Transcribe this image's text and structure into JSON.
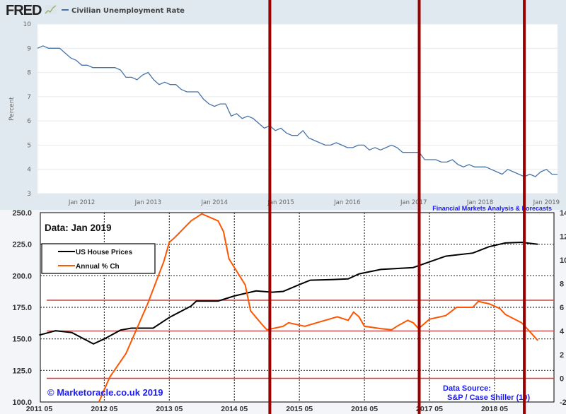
{
  "chart_data": [
    {
      "type": "line",
      "brand": "FRED",
      "legend": [
        "Civilian Unemployment Rate"
      ],
      "ylabel": "Percent",
      "ylim": [
        3,
        10
      ],
      "yticks": [
        "10",
        "9",
        "8",
        "7",
        "6",
        "5",
        "4",
        "3"
      ],
      "xticks": [
        {
          "date": "2012-01",
          "label": "Jan 2012"
        },
        {
          "date": "2013-01",
          "label": "Jan 2013"
        },
        {
          "date": "2014-01",
          "label": "Jan 2014"
        },
        {
          "date": "2015-01",
          "label": "Jan 2015"
        },
        {
          "date": "2016-01",
          "label": "Jan 2016"
        },
        {
          "date": "2017-01",
          "label": "Jan 2017"
        },
        {
          "date": "2018-01",
          "label": "Jan 2018"
        },
        {
          "date": "2019-01",
          "label": "Jan 2019"
        }
      ],
      "xlim": [
        "2011-05",
        "2019-03"
      ],
      "grid": true,
      "line_color": "#4572a7",
      "series": [
        {
          "name": "Civilian Unemployment Rate",
          "start": "2011-05",
          "frequency": "monthly",
          "values": [
            9.0,
            9.1,
            9.0,
            9.0,
            9.0,
            8.8,
            8.6,
            8.5,
            8.3,
            8.3,
            8.2,
            8.2,
            8.2,
            8.2,
            8.2,
            8.1,
            7.8,
            7.8,
            7.7,
            7.9,
            8.0,
            7.7,
            7.5,
            7.6,
            7.5,
            7.5,
            7.3,
            7.2,
            7.2,
            7.2,
            6.9,
            6.7,
            6.6,
            6.7,
            6.7,
            6.2,
            6.3,
            6.1,
            6.2,
            6.1,
            5.9,
            5.7,
            5.8,
            5.6,
            5.7,
            5.5,
            5.4,
            5.4,
            5.6,
            5.3,
            5.2,
            5.1,
            5.0,
            5.0,
            5.1,
            5.0,
            4.9,
            4.9,
            5.0,
            5.0,
            4.8,
            4.9,
            4.8,
            4.9,
            5.0,
            4.9,
            4.7,
            4.7,
            4.7,
            4.7,
            4.4,
            4.4,
            4.4,
            4.3,
            4.3,
            4.4,
            4.2,
            4.1,
            4.2,
            4.1,
            4.1,
            4.1,
            4.0,
            3.9,
            3.8,
            4.0,
            3.9,
            3.8,
            3.7,
            3.8,
            3.7,
            3.9,
            4.0,
            3.8,
            3.8
          ]
        }
      ]
    },
    {
      "type": "line",
      "annotation_title": "Data: Jan 2019",
      "header_text": "Financial Markets Analysis & Forecasts",
      "copyright": "© Marketoracle.co.uk 2019",
      "source_title": "Data Source:",
      "source": "S&P / Case Shiller (10)",
      "ylim_left": [
        100,
        250
      ],
      "ylim_right": [
        -2,
        14
      ],
      "yticks_left": [
        "250.0",
        "225.0",
        "200.0",
        "175.0",
        "150.0",
        "125.0",
        "100.0"
      ],
      "yticks_right": [
        "14",
        "12",
        "10",
        "8",
        "6",
        "4",
        "2",
        "0",
        "-2"
      ],
      "xlim": [
        "2011-05",
        "2019-03"
      ],
      "xticks": [
        {
          "date": "2011-05",
          "label": "2011 05"
        },
        {
          "date": "2012-05",
          "label": "2012 05"
        },
        {
          "date": "2013-05",
          "label": "2013 05"
        },
        {
          "date": "2014-05",
          "label": "2014 05"
        },
        {
          "date": "2015-05",
          "label": "2015 05"
        },
        {
          "date": "2016-05",
          "label": "2016 05"
        },
        {
          "date": "2017-05",
          "label": "2017 05"
        },
        {
          "date": "2018-05",
          "label": "2018 05"
        }
      ],
      "grid": "dotted",
      "legend_placement": "top-left",
      "series": [
        {
          "name": "US House Prices",
          "axis": "left",
          "color": "#000000",
          "points": [
            [
              "2011-05",
              153
            ],
            [
              "2011-08",
              156.5
            ],
            [
              "2011-11",
              155
            ],
            [
              "2012-03",
              146
            ],
            [
              "2012-05",
              150
            ],
            [
              "2012-08",
              157
            ],
            [
              "2012-10",
              158.5
            ],
            [
              "2013-02",
              158.5
            ],
            [
              "2013-05",
              167
            ],
            [
              "2013-09",
              176
            ],
            [
              "2013-10",
              180
            ],
            [
              "2014-02",
              180
            ],
            [
              "2014-05",
              184
            ],
            [
              "2014-09",
              188
            ],
            [
              "2014-12",
              187
            ],
            [
              "2015-02",
              187.6
            ],
            [
              "2015-05",
              193
            ],
            [
              "2015-07",
              196.5
            ],
            [
              "2015-11",
              197
            ],
            [
              "2016-02",
              197.5
            ],
            [
              "2016-04",
              201.5
            ],
            [
              "2016-08",
              205
            ],
            [
              "2017-02",
              206.5
            ],
            [
              "2017-05",
              211
            ],
            [
              "2017-08",
              215.5
            ],
            [
              "2018-01",
              218
            ],
            [
              "2018-04",
              223
            ],
            [
              "2018-07",
              226
            ],
            [
              "2018-10",
              226.5
            ],
            [
              "2019-01",
              225
            ]
          ]
        },
        {
          "name": "Annual % Ch",
          "axis": "right",
          "color": "#ff5500",
          "points": [
            [
              "2012-04",
              -2
            ],
            [
              "2012-06",
              0.1
            ],
            [
              "2012-09",
              2.1
            ],
            [
              "2013-01",
              6.3
            ],
            [
              "2013-04",
              9.9
            ],
            [
              "2013-05",
              11.5
            ],
            [
              "2013-06",
              11.9
            ],
            [
              "2013-09",
              13.3
            ],
            [
              "2013-11",
              13.9
            ],
            [
              "2014-02",
              13.3
            ],
            [
              "2014-03",
              12.4
            ],
            [
              "2014-04",
              10.1
            ],
            [
              "2014-07",
              7.9
            ],
            [
              "2014-08",
              5.7
            ],
            [
              "2014-10",
              4.6
            ],
            [
              "2014-11",
              4.1
            ],
            [
              "2015-02",
              4.4
            ],
            [
              "2015-03",
              4.7
            ],
            [
              "2015-06",
              4.4
            ],
            [
              "2015-09",
              4.8
            ],
            [
              "2015-12",
              5.2
            ],
            [
              "2016-02",
              4.9
            ],
            [
              "2016-03",
              5.6
            ],
            [
              "2016-04",
              5.2
            ],
            [
              "2016-05",
              4.4
            ],
            [
              "2016-08",
              4.2
            ],
            [
              "2016-10",
              4.1
            ],
            [
              "2016-11",
              4.4
            ],
            [
              "2017-01",
              4.9
            ],
            [
              "2017-02",
              4.7
            ],
            [
              "2017-03",
              4.2
            ],
            [
              "2017-05",
              5.0
            ],
            [
              "2017-08",
              5.3
            ],
            [
              "2017-10",
              6.0
            ],
            [
              "2018-01",
              6.0
            ],
            [
              "2018-02",
              6.5
            ],
            [
              "2018-04",
              6.3
            ],
            [
              "2018-06",
              5.9
            ],
            [
              "2018-07",
              5.4
            ],
            [
              "2018-10",
              4.7
            ],
            [
              "2018-11",
              4.2
            ],
            [
              "2019-01",
              3.2
            ]
          ]
        }
      ],
      "reference_lines_right_axis": [
        {
          "value": 6.6,
          "color": "#c0504d"
        },
        {
          "value": 4.0,
          "color": "#c0504d"
        },
        {
          "value": 0,
          "color": "#ff2a2a"
        }
      ]
    }
  ],
  "overlay_vertical_lines": {
    "color": "#990000",
    "dates": [
      "2014-11",
      "2017-02",
      "2018-09"
    ]
  }
}
